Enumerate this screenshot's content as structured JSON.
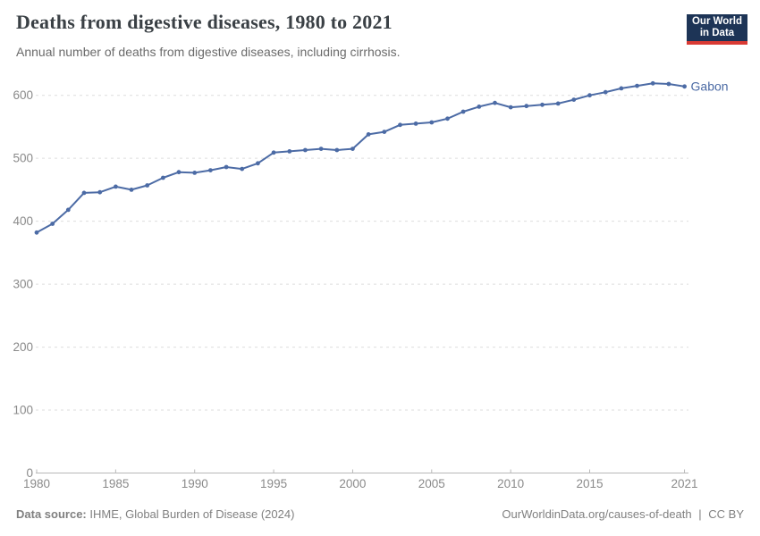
{
  "header": {
    "title": "Deaths from digestive diseases, 1980 to 2021",
    "subtitle": "Annual number of deaths from digestive diseases, including cirrhosis.",
    "logo": {
      "line1": "Our World",
      "line2": "in Data"
    }
  },
  "chart_data": {
    "type": "line",
    "title": "Deaths from digestive diseases, 1980 to 2021",
    "xlabel": "",
    "ylabel": "",
    "grid": "dashed-horizontal",
    "legend": "none",
    "entity_label": "Gabon",
    "x_ticks": [
      1980,
      1985,
      1990,
      1995,
      2000,
      2005,
      2010,
      2015,
      2021
    ],
    "y_ticks": [
      0,
      100,
      200,
      300,
      400,
      500,
      600
    ],
    "xlim": [
      1980,
      2021
    ],
    "ylim": [
      0,
      650
    ],
    "series": [
      {
        "name": "Gabon",
        "x": [
          1980,
          1981,
          1982,
          1983,
          1984,
          1985,
          1986,
          1987,
          1988,
          1989,
          1990,
          1991,
          1992,
          1993,
          1994,
          1995,
          1996,
          1997,
          1998,
          1999,
          2000,
          2001,
          2002,
          2003,
          2004,
          2005,
          2006,
          2007,
          2008,
          2009,
          2010,
          2011,
          2012,
          2013,
          2014,
          2015,
          2016,
          2017,
          2018,
          2019,
          2020,
          2021
        ],
        "values": [
          382,
          396,
          418,
          445,
          446,
          455,
          450,
          457,
          469,
          478,
          477,
          481,
          486,
          483,
          492,
          509,
          511,
          513,
          515,
          513,
          515,
          538,
          542,
          553,
          555,
          557,
          563,
          574,
          582,
          588,
          581,
          583,
          585,
          587,
          593,
          600,
          605,
          611,
          615,
          619,
          618,
          614
        ]
      }
    ]
  },
  "footer": {
    "source_label": "Data source:",
    "source": "IHME, Global Burden of Disease (2024)",
    "link": "OurWorldinData.org/causes-of-death",
    "divider": "|",
    "license": "CC BY"
  },
  "colors": {
    "line": "#4c6ba5",
    "entity_label": "#4c6ba5",
    "grid": "#dddddd",
    "axis": "#b8b8b8",
    "tick_label": "#8a8a8a",
    "logo_bg": "#1d3456",
    "logo_accent": "#d93a34"
  }
}
